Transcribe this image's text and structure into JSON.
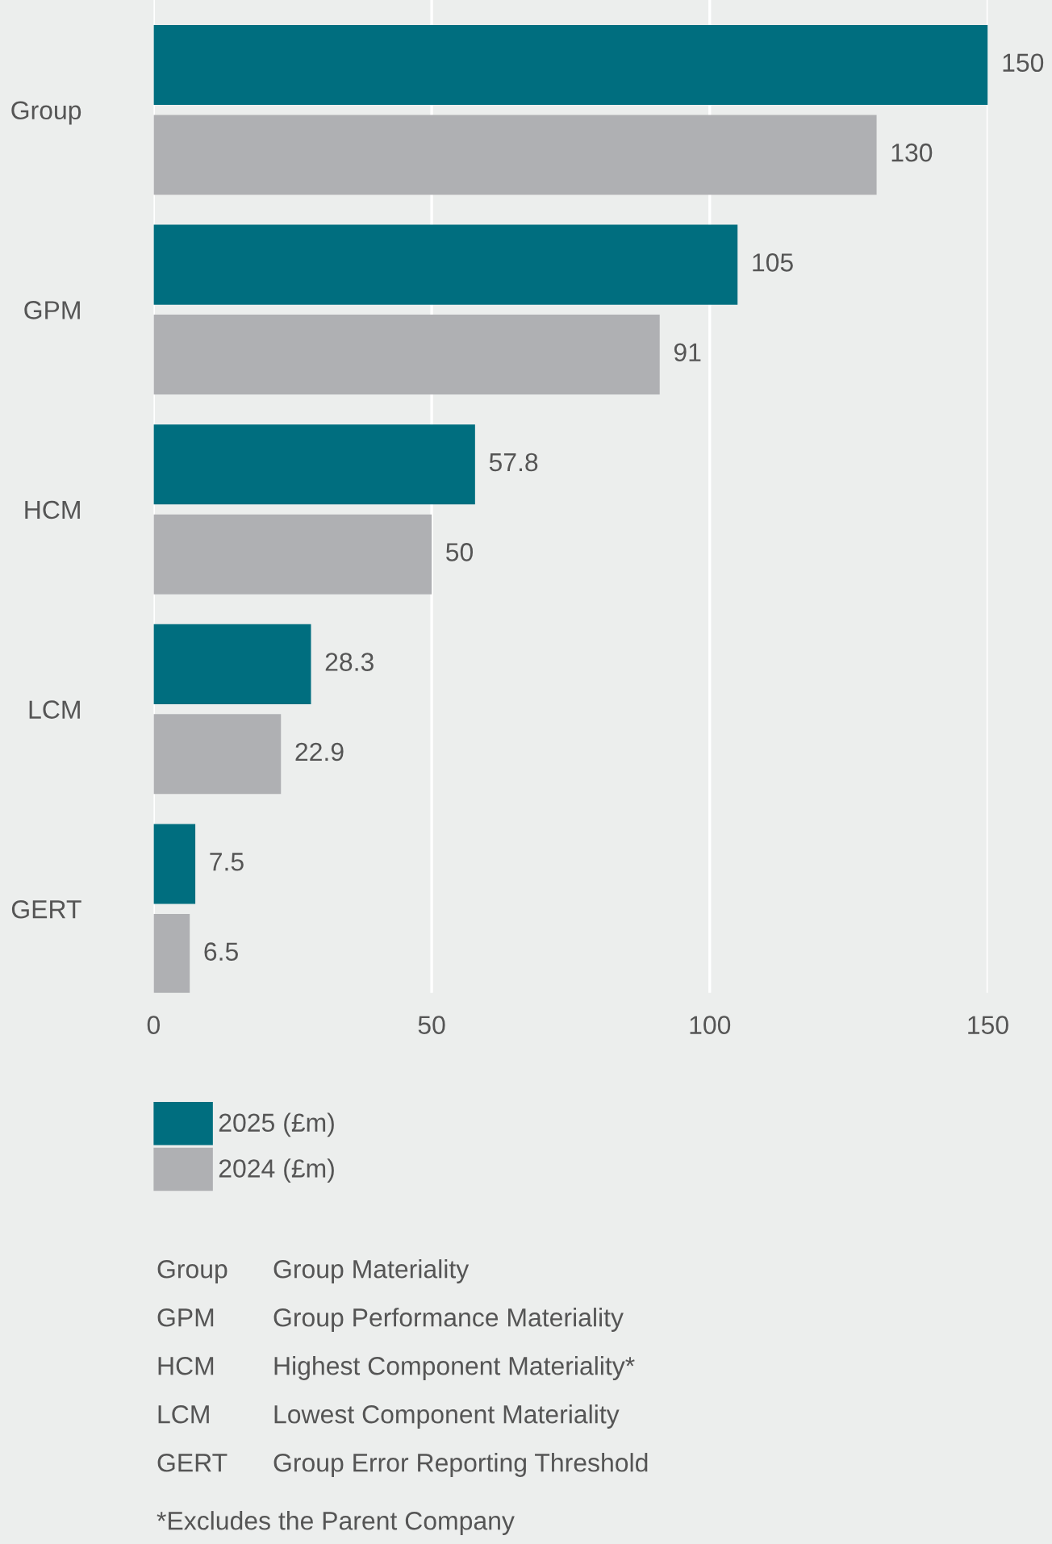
{
  "chart_data": {
    "type": "bar",
    "orientation": "horizontal",
    "categories": [
      "Group",
      "GPM",
      "HCM",
      "LCM",
      "GERT"
    ],
    "series": [
      {
        "name": "2025 (£m)",
        "color": "#006e7f",
        "values": [
          150,
          105,
          57.8,
          28.3,
          7.5
        ]
      },
      {
        "name": "2024 (£m)",
        "color": "#afb0b3",
        "values": [
          130,
          91,
          50,
          22.9,
          6.5
        ]
      }
    ],
    "xlim": [
      0,
      150
    ],
    "xticks": [
      0,
      50,
      100,
      150
    ],
    "grid": "x",
    "legend": "bottom",
    "data_labels": true,
    "annotations": [
      "Group",
      "Group Materiality",
      "GPM",
      "Group Performance Materiality",
      "HCM",
      "Highest Component Materiality*",
      "LCM",
      "Lowest Component Materiality",
      "GERT",
      "Group Error Reporting Threshold",
      "*Excludes the Parent Company"
    ]
  }
}
